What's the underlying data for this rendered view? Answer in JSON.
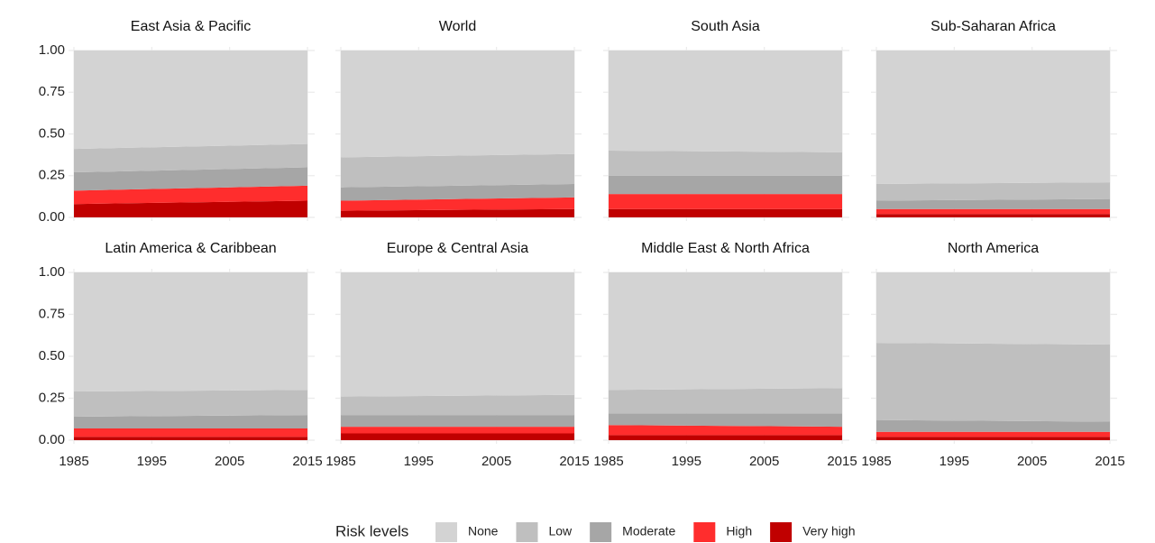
{
  "legend_title": "Risk levels",
  "chart_data": [
    {
      "type": "area",
      "title": "East Asia & Pacific",
      "x": [
        1985,
        2015
      ],
      "xlim": [
        1985,
        2015
      ],
      "xticks": [
        1985,
        1995,
        2005,
        2015
      ],
      "ylim": [
        0,
        1
      ],
      "yticks": [
        {
          "value": 0,
          "label": "0.00"
        },
        {
          "value": 0.25,
          "label": "0.25"
        },
        {
          "value": 0.5,
          "label": "0.50"
        },
        {
          "value": 0.75,
          "label": "0.75"
        },
        {
          "value": 1,
          "label": "1.00"
        }
      ],
      "series": [
        {
          "name": "Very high",
          "color": "#c00000",
          "values": [
            0.08,
            0.1
          ]
        },
        {
          "name": "High",
          "color": "#ff2d2d",
          "values": [
            0.08,
            0.09
          ]
        },
        {
          "name": "Moderate",
          "color": "#a6a6a6",
          "values": [
            0.11,
            0.11
          ]
        },
        {
          "name": "Low",
          "color": "#bfbfbf",
          "values": [
            0.14,
            0.14
          ]
        },
        {
          "name": "None",
          "color": "#d3d3d3",
          "values": [
            0.59,
            0.56
          ]
        }
      ]
    },
    {
      "type": "area",
      "title": "World",
      "x": [
        1985,
        2015
      ],
      "xlim": [
        1985,
        2015
      ],
      "xticks": [
        1985,
        1995,
        2005,
        2015
      ],
      "ylim": [
        0,
        1
      ],
      "yticks": [
        {
          "value": 0,
          "label": "0.00"
        },
        {
          "value": 0.25,
          "label": "0.25"
        },
        {
          "value": 0.5,
          "label": "0.50"
        },
        {
          "value": 0.75,
          "label": "0.75"
        },
        {
          "value": 1,
          "label": "1.00"
        }
      ],
      "series": [
        {
          "name": "Very high",
          "color": "#c00000",
          "values": [
            0.04,
            0.05
          ]
        },
        {
          "name": "High",
          "color": "#ff2d2d",
          "values": [
            0.06,
            0.07
          ]
        },
        {
          "name": "Moderate",
          "color": "#a6a6a6",
          "values": [
            0.08,
            0.08
          ]
        },
        {
          "name": "Low",
          "color": "#bfbfbf",
          "values": [
            0.18,
            0.18
          ]
        },
        {
          "name": "None",
          "color": "#d3d3d3",
          "values": [
            0.64,
            0.62
          ]
        }
      ]
    },
    {
      "type": "area",
      "title": "South Asia",
      "x": [
        1985,
        2015
      ],
      "xlim": [
        1985,
        2015
      ],
      "xticks": [
        1985,
        1995,
        2005,
        2015
      ],
      "ylim": [
        0,
        1
      ],
      "yticks": [
        {
          "value": 0,
          "label": "0.00"
        },
        {
          "value": 0.25,
          "label": "0.25"
        },
        {
          "value": 0.5,
          "label": "0.50"
        },
        {
          "value": 0.75,
          "label": "0.75"
        },
        {
          "value": 1,
          "label": "1.00"
        }
      ],
      "series": [
        {
          "name": "Very high",
          "color": "#c00000",
          "values": [
            0.05,
            0.05
          ]
        },
        {
          "name": "High",
          "color": "#ff2d2d",
          "values": [
            0.09,
            0.09
          ]
        },
        {
          "name": "Moderate",
          "color": "#a6a6a6",
          "values": [
            0.11,
            0.11
          ]
        },
        {
          "name": "Low",
          "color": "#bfbfbf",
          "values": [
            0.15,
            0.14
          ]
        },
        {
          "name": "None",
          "color": "#d3d3d3",
          "values": [
            0.6,
            0.61
          ]
        }
      ]
    },
    {
      "type": "area",
      "title": "Sub-Saharan Africa",
      "x": [
        1985,
        2015
      ],
      "xlim": [
        1985,
        2015
      ],
      "xticks": [
        1985,
        1995,
        2005,
        2015
      ],
      "ylim": [
        0,
        1
      ],
      "yticks": [
        {
          "value": 0,
          "label": "0.00"
        },
        {
          "value": 0.25,
          "label": "0.25"
        },
        {
          "value": 0.5,
          "label": "0.50"
        },
        {
          "value": 0.75,
          "label": "0.75"
        },
        {
          "value": 1,
          "label": "1.00"
        }
      ],
      "series": [
        {
          "name": "Very high",
          "color": "#c00000",
          "values": [
            0.02,
            0.02
          ]
        },
        {
          "name": "High",
          "color": "#ff2d2d",
          "values": [
            0.03,
            0.03
          ]
        },
        {
          "name": "Moderate",
          "color": "#a6a6a6",
          "values": [
            0.05,
            0.06
          ]
        },
        {
          "name": "Low",
          "color": "#bfbfbf",
          "values": [
            0.1,
            0.1
          ]
        },
        {
          "name": "None",
          "color": "#d3d3d3",
          "values": [
            0.8,
            0.79
          ]
        }
      ]
    },
    {
      "type": "area",
      "title": "Latin America & Caribbean",
      "x": [
        1985,
        2015
      ],
      "xlim": [
        1985,
        2015
      ],
      "xticks": [
        1985,
        1995,
        2005,
        2015
      ],
      "ylim": [
        0,
        1
      ],
      "yticks": [
        {
          "value": 0,
          "label": "0.00"
        },
        {
          "value": 0.25,
          "label": "0.25"
        },
        {
          "value": 0.5,
          "label": "0.50"
        },
        {
          "value": 0.75,
          "label": "0.75"
        },
        {
          "value": 1,
          "label": "1.00"
        }
      ],
      "series": [
        {
          "name": "Very high",
          "color": "#c00000",
          "values": [
            0.02,
            0.02
          ]
        },
        {
          "name": "High",
          "color": "#ff2d2d",
          "values": [
            0.05,
            0.05
          ]
        },
        {
          "name": "Moderate",
          "color": "#a6a6a6",
          "values": [
            0.07,
            0.08
          ]
        },
        {
          "name": "Low",
          "color": "#bfbfbf",
          "values": [
            0.15,
            0.15
          ]
        },
        {
          "name": "None",
          "color": "#d3d3d3",
          "values": [
            0.71,
            0.7
          ]
        }
      ]
    },
    {
      "type": "area",
      "title": "Europe & Central Asia",
      "x": [
        1985,
        2015
      ],
      "xlim": [
        1985,
        2015
      ],
      "xticks": [
        1985,
        1995,
        2005,
        2015
      ],
      "ylim": [
        0,
        1
      ],
      "yticks": [
        {
          "value": 0,
          "label": "0.00"
        },
        {
          "value": 0.25,
          "label": "0.25"
        },
        {
          "value": 0.5,
          "label": "0.50"
        },
        {
          "value": 0.75,
          "label": "0.75"
        },
        {
          "value": 1,
          "label": "1.00"
        }
      ],
      "series": [
        {
          "name": "Very high",
          "color": "#c00000",
          "values": [
            0.04,
            0.04
          ]
        },
        {
          "name": "High",
          "color": "#ff2d2d",
          "values": [
            0.04,
            0.04
          ]
        },
        {
          "name": "Moderate",
          "color": "#a6a6a6",
          "values": [
            0.07,
            0.07
          ]
        },
        {
          "name": "Low",
          "color": "#bfbfbf",
          "values": [
            0.11,
            0.12
          ]
        },
        {
          "name": "None",
          "color": "#d3d3d3",
          "values": [
            0.74,
            0.73
          ]
        }
      ]
    },
    {
      "type": "area",
      "title": "Middle East & North Africa",
      "x": [
        1985,
        2015
      ],
      "xlim": [
        1985,
        2015
      ],
      "xticks": [
        1985,
        1995,
        2005,
        2015
      ],
      "ylim": [
        0,
        1
      ],
      "yticks": [
        {
          "value": 0,
          "label": "0.00"
        },
        {
          "value": 0.25,
          "label": "0.25"
        },
        {
          "value": 0.5,
          "label": "0.50"
        },
        {
          "value": 0.75,
          "label": "0.75"
        },
        {
          "value": 1,
          "label": "1.00"
        }
      ],
      "series": [
        {
          "name": "Very high",
          "color": "#c00000",
          "values": [
            0.03,
            0.03
          ]
        },
        {
          "name": "High",
          "color": "#ff2d2d",
          "values": [
            0.06,
            0.05
          ]
        },
        {
          "name": "Moderate",
          "color": "#a6a6a6",
          "values": [
            0.07,
            0.08
          ]
        },
        {
          "name": "Low",
          "color": "#bfbfbf",
          "values": [
            0.14,
            0.15
          ]
        },
        {
          "name": "None",
          "color": "#d3d3d3",
          "values": [
            0.7,
            0.69
          ]
        }
      ]
    },
    {
      "type": "area",
      "title": "North America",
      "x": [
        1985,
        2015
      ],
      "xlim": [
        1985,
        2015
      ],
      "xticks": [
        1985,
        1995,
        2005,
        2015
      ],
      "ylim": [
        0,
        1
      ],
      "yticks": [
        {
          "value": 0,
          "label": "0.00"
        },
        {
          "value": 0.25,
          "label": "0.25"
        },
        {
          "value": 0.5,
          "label": "0.50"
        },
        {
          "value": 0.75,
          "label": "0.75"
        },
        {
          "value": 1,
          "label": "1.00"
        }
      ],
      "series": [
        {
          "name": "Very high",
          "color": "#c00000",
          "values": [
            0.02,
            0.02
          ]
        },
        {
          "name": "High",
          "color": "#ff2d2d",
          "values": [
            0.03,
            0.03
          ]
        },
        {
          "name": "Moderate",
          "color": "#a6a6a6",
          "values": [
            0.07,
            0.06
          ]
        },
        {
          "name": "Low",
          "color": "#bfbfbf",
          "values": [
            0.46,
            0.46
          ]
        },
        {
          "name": "None",
          "color": "#d3d3d3",
          "values": [
            0.42,
            0.43
          ]
        }
      ]
    }
  ]
}
